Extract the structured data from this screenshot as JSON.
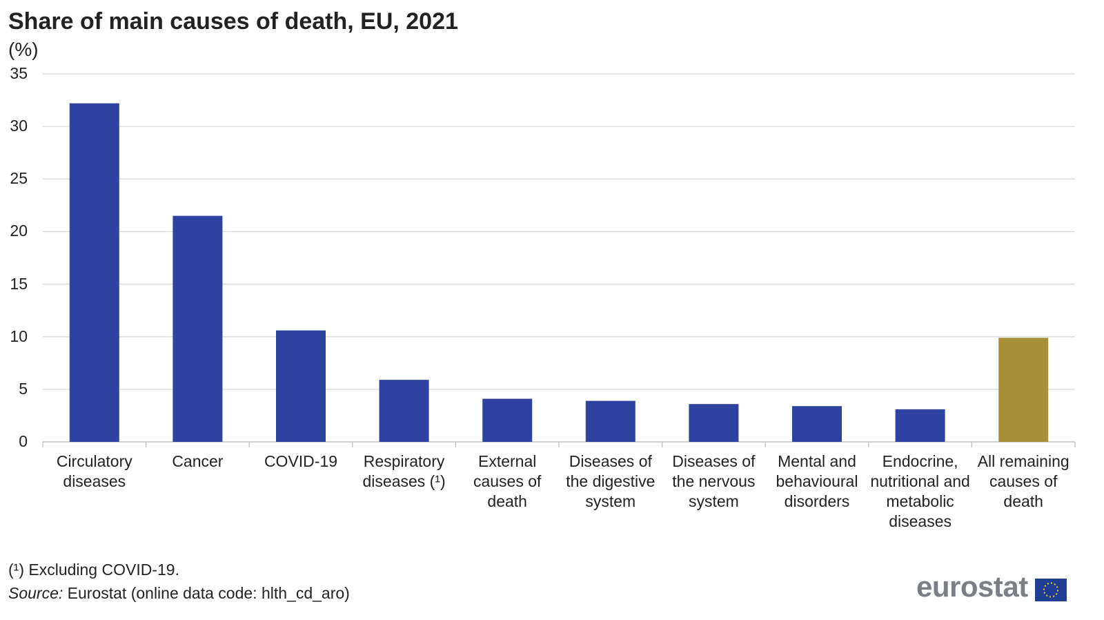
{
  "chart_data": {
    "type": "bar",
    "title": "Share of main causes of death, EU, 2021",
    "subtitle": "(%)",
    "categories": [
      "Circulatory diseases",
      "Cancer",
      "COVID-19",
      "Respiratory diseases (¹)",
      "External causes of death",
      "Diseases of the digestive system",
      "Diseases of the nervous system",
      "Mental and behavioural disorders",
      "Endocrine, nutritional and metabolic diseases",
      "All remaining causes of death"
    ],
    "values": [
      32.2,
      21.5,
      10.6,
      5.9,
      4.1,
      3.9,
      3.6,
      3.4,
      3.1,
      9.9
    ],
    "colors": [
      "#2e42a0",
      "#2e42a0",
      "#2e42a0",
      "#2e42a0",
      "#2e42a0",
      "#2e42a0",
      "#2e42a0",
      "#2e42a0",
      "#2e42a0",
      "#a89038"
    ],
    "ylim": [
      0,
      35
    ],
    "yticks": [
      0,
      5,
      10,
      15,
      20,
      25,
      30,
      35
    ],
    "grid": true,
    "footnote": "(¹) Excluding COVID-19.",
    "source_label": "Source:",
    "source_text": "Eurostat (online data code: hlth_cd_aro)",
    "logo": "eurostat"
  }
}
